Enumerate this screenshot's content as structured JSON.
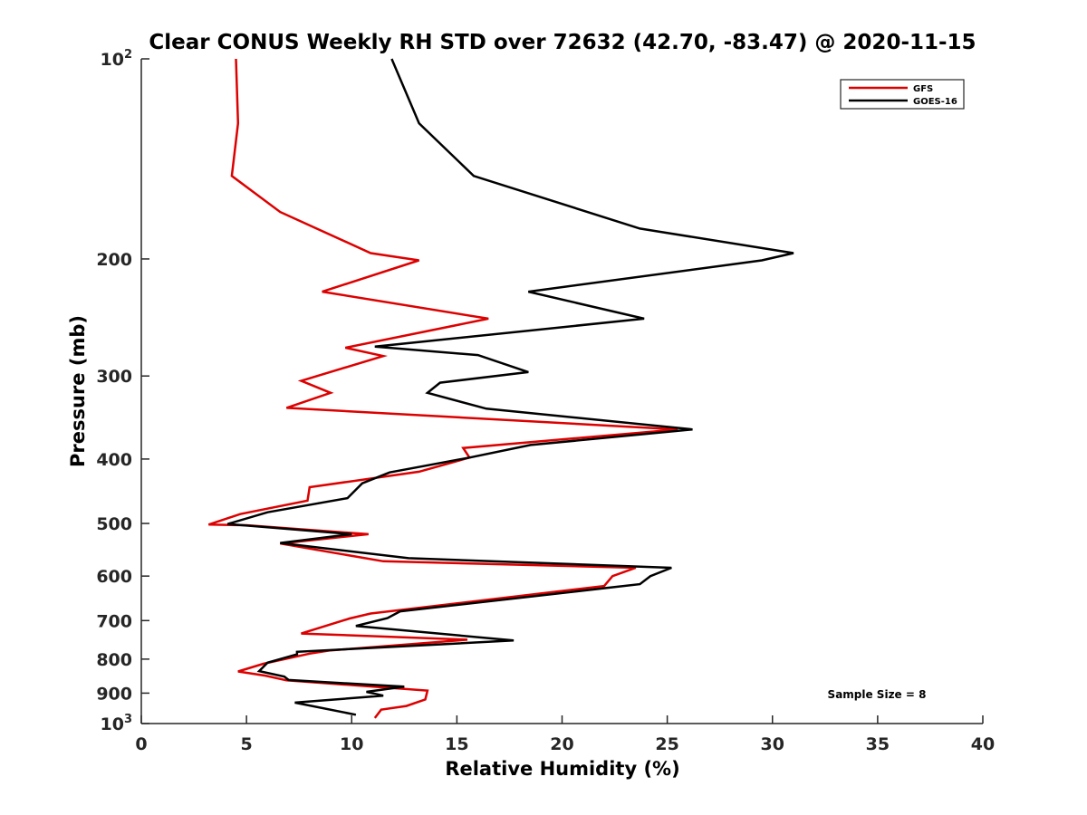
{
  "chart_data": {
    "type": "line",
    "title": "Clear CONUS Weekly RH STD over 72632 (42.70, -83.47) @ 2020-11-15",
    "xlabel": "Relative Humidity (%)",
    "ylabel": "Pressure (mb)",
    "xlim": [
      0,
      40
    ],
    "ylim": [
      100,
      1000
    ],
    "y_scale": "log",
    "y_reversed": true,
    "x_ticks": [
      0,
      5,
      10,
      15,
      20,
      25,
      30,
      35,
      40
    ],
    "x_tick_labels": [
      "0",
      "5",
      "10",
      "15",
      "20",
      "25",
      "30",
      "35",
      "40"
    ],
    "y_tick_labels": [
      {
        "value": 100,
        "base": "10",
        "exp": "2"
      },
      {
        "value": 200,
        "text": "200"
      },
      {
        "value": 300,
        "text": "300"
      },
      {
        "value": 400,
        "text": "400"
      },
      {
        "value": 500,
        "text": "500"
      },
      {
        "value": 600,
        "text": "600"
      },
      {
        "value": 700,
        "text": "700"
      },
      {
        "value": 800,
        "text": "800"
      },
      {
        "value": 900,
        "text": "900"
      },
      {
        "value": 1000,
        "base": "10",
        "exp": "3"
      }
    ],
    "grid": false,
    "legend_position": "top-right",
    "annotation": "Sample Size = 8",
    "series": [
      {
        "name": "GFS",
        "color": "#dd0000",
        "points": [
          [
            4.5,
            100
          ],
          [
            4.6,
            125
          ],
          [
            4.3,
            150
          ],
          [
            6.6,
            170
          ],
          [
            10.9,
            196
          ],
          [
            13.2,
            201
          ],
          [
            8.6,
            224
          ],
          [
            16.5,
            246
          ],
          [
            9.7,
            272
          ],
          [
            11.5,
            280
          ],
          [
            7.6,
            305
          ],
          [
            9.0,
            318
          ],
          [
            6.9,
            335
          ],
          [
            25.5,
            361
          ],
          [
            15.3,
            385
          ],
          [
            15.6,
            398
          ],
          [
            13.2,
            418
          ],
          [
            8.0,
            441
          ],
          [
            7.9,
            462
          ],
          [
            4.7,
            484
          ],
          [
            3.2,
            502
          ],
          [
            5.0,
            503
          ],
          [
            10.8,
            519
          ],
          [
            6.6,
            536
          ],
          [
            11.5,
            570
          ],
          [
            23.5,
            583
          ],
          [
            22.4,
            600
          ],
          [
            22.0,
            621
          ],
          [
            10.9,
            683
          ],
          [
            9.9,
            695
          ],
          [
            7.6,
            732
          ],
          [
            15.5,
            748
          ],
          [
            9.0,
            776
          ],
          [
            8.0,
            785
          ],
          [
            5.8,
            813
          ],
          [
            4.6,
            835
          ],
          [
            5.9,
            847
          ],
          [
            6.9,
            861
          ],
          [
            13.6,
            892
          ],
          [
            13.5,
            920
          ],
          [
            12.6,
            941
          ],
          [
            11.4,
            953
          ],
          [
            11.1,
            981
          ]
        ]
      },
      {
        "name": "GOES-16",
        "color": "#000000",
        "points": [
          [
            11.9,
            100
          ],
          [
            13.2,
            125
          ],
          [
            15.8,
            150
          ],
          [
            23.7,
            180
          ],
          [
            31.0,
            196
          ],
          [
            29.5,
            201
          ],
          [
            18.4,
            224
          ],
          [
            23.9,
            246
          ],
          [
            11.1,
            271
          ],
          [
            16.0,
            279
          ],
          [
            18.4,
            296
          ],
          [
            14.2,
            307
          ],
          [
            13.6,
            318
          ],
          [
            16.4,
            336
          ],
          [
            26.2,
            361
          ],
          [
            18.5,
            381
          ],
          [
            15.6,
            398
          ],
          [
            11.8,
            419
          ],
          [
            10.5,
            435
          ],
          [
            9.8,
            458
          ],
          [
            6.0,
            481
          ],
          [
            4.1,
            501
          ],
          [
            10.0,
            519
          ],
          [
            6.6,
            535
          ],
          [
            12.7,
            564
          ],
          [
            25.2,
            583
          ],
          [
            24.2,
            600
          ],
          [
            23.7,
            617
          ],
          [
            12.3,
            678
          ],
          [
            11.7,
            694
          ],
          [
            10.2,
            713
          ],
          [
            17.7,
            750
          ],
          [
            7.4,
            780
          ],
          [
            7.4,
            787
          ],
          [
            6.0,
            810
          ],
          [
            5.6,
            834
          ],
          [
            6.8,
            850
          ],
          [
            7.0,
            860
          ],
          [
            12.5,
            880
          ],
          [
            10.7,
            896
          ],
          [
            11.5,
            908
          ],
          [
            7.3,
            930
          ],
          [
            10.2,
            970
          ]
        ]
      }
    ]
  }
}
